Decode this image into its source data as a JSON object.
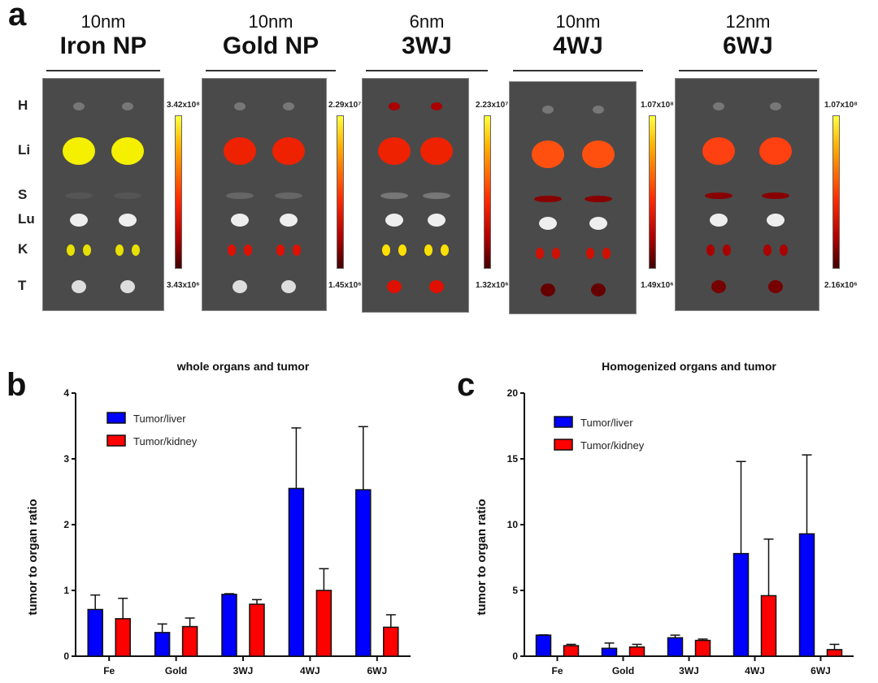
{
  "panel_labels": {
    "a": "a",
    "b": "b",
    "c": "c"
  },
  "organs": [
    "H",
    "Li",
    "S",
    "Lu",
    "K",
    "T"
  ],
  "panels": [
    {
      "size": "10nm",
      "name": "Iron NP",
      "cb_max": "3.42x10⁸",
      "cb_min": "3.43x10⁶"
    },
    {
      "size": "10nm",
      "name": "Gold NP",
      "cb_max": "2.29x10⁷",
      "cb_min": "1.45x10⁶"
    },
    {
      "size": "6nm",
      "name": "3WJ",
      "cb_max": "2.23x10⁷",
      "cb_min": "1.32x10⁶"
    },
    {
      "size": "10nm",
      "name": "4WJ",
      "cb_max": "1.07x10⁸",
      "cb_min": "1.49x10⁶"
    },
    {
      "size": "12nm",
      "name": "6WJ",
      "cb_max": "1.07x10⁸",
      "cb_min": "2.16x10⁶"
    }
  ],
  "colors": {
    "liver": "#0000ff",
    "kidney": "#ff0000"
  },
  "chart_data": [
    {
      "type": "bar",
      "title": "whole organs and tumor",
      "xlabel": "",
      "ylabel": "tumor to organ ratio",
      "categories": [
        "Fe",
        "Gold",
        "3WJ",
        "4WJ",
        "6WJ"
      ],
      "ylim": [
        0,
        4
      ],
      "yticks": [
        0,
        1,
        2,
        3,
        4
      ],
      "legend": "top-left",
      "series": [
        {
          "name": "Tumor/liver",
          "values": [
            0.71,
            0.36,
            0.94,
            2.55,
            2.53
          ],
          "error": [
            0.22,
            0.13,
            0.01,
            0.92,
            0.96
          ]
        },
        {
          "name": "Tumor/kidney",
          "values": [
            0.57,
            0.45,
            0.79,
            1.0,
            0.44
          ],
          "error": [
            0.31,
            0.13,
            0.07,
            0.33,
            0.19
          ]
        }
      ]
    },
    {
      "type": "bar",
      "title": "Homogenized organs and tumor",
      "xlabel": "",
      "ylabel": "tumor to organ ratio",
      "categories": [
        "Fe",
        "Gold",
        "3WJ",
        "4WJ",
        "6WJ"
      ],
      "ylim": [
        0,
        20
      ],
      "yticks": [
        0,
        5,
        10,
        15,
        20
      ],
      "legend": "top-left",
      "series": [
        {
          "name": "Tumor/liver",
          "values": [
            1.6,
            0.6,
            1.4,
            7.8,
            9.3
          ],
          "error": [
            0.02,
            0.4,
            0.2,
            7.0,
            6.0
          ]
        },
        {
          "name": "Tumor/kidney",
          "values": [
            0.8,
            0.7,
            1.2,
            4.6,
            0.5
          ],
          "error": [
            0.1,
            0.2,
            0.1,
            4.3,
            0.4
          ]
        }
      ]
    }
  ]
}
